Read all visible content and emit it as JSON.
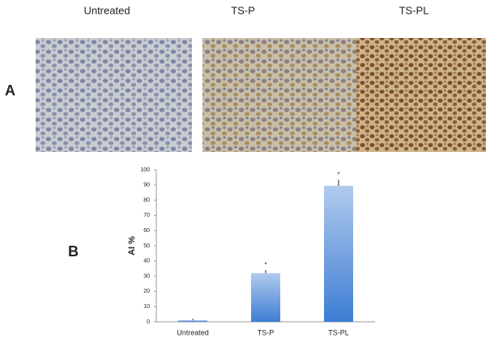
{
  "panels": {
    "a": {
      "label": "A",
      "images": [
        "Untreated",
        "TS-P",
        "TS-PL"
      ]
    },
    "b": {
      "label": "B"
    }
  },
  "chart_data": {
    "type": "bar",
    "y_label": "AI %",
    "categories": [
      "Untreated",
      "TS-P",
      "TS-PL"
    ],
    "values": [
      1,
      32,
      89.5
    ],
    "errors": [
      1,
      2,
      4
    ],
    "color": "#3d7dd3",
    "annotations": [
      {
        "text": "*",
        "x": "TS-P"
      },
      {
        "text": "*",
        "x": "TS-PL"
      }
    ],
    "ylim": [
      0,
      100
    ],
    "yticks": [
      0,
      10,
      20,
      30,
      40,
      50,
      60,
      70,
      80,
      90,
      100
    ],
    "grid": false
  }
}
